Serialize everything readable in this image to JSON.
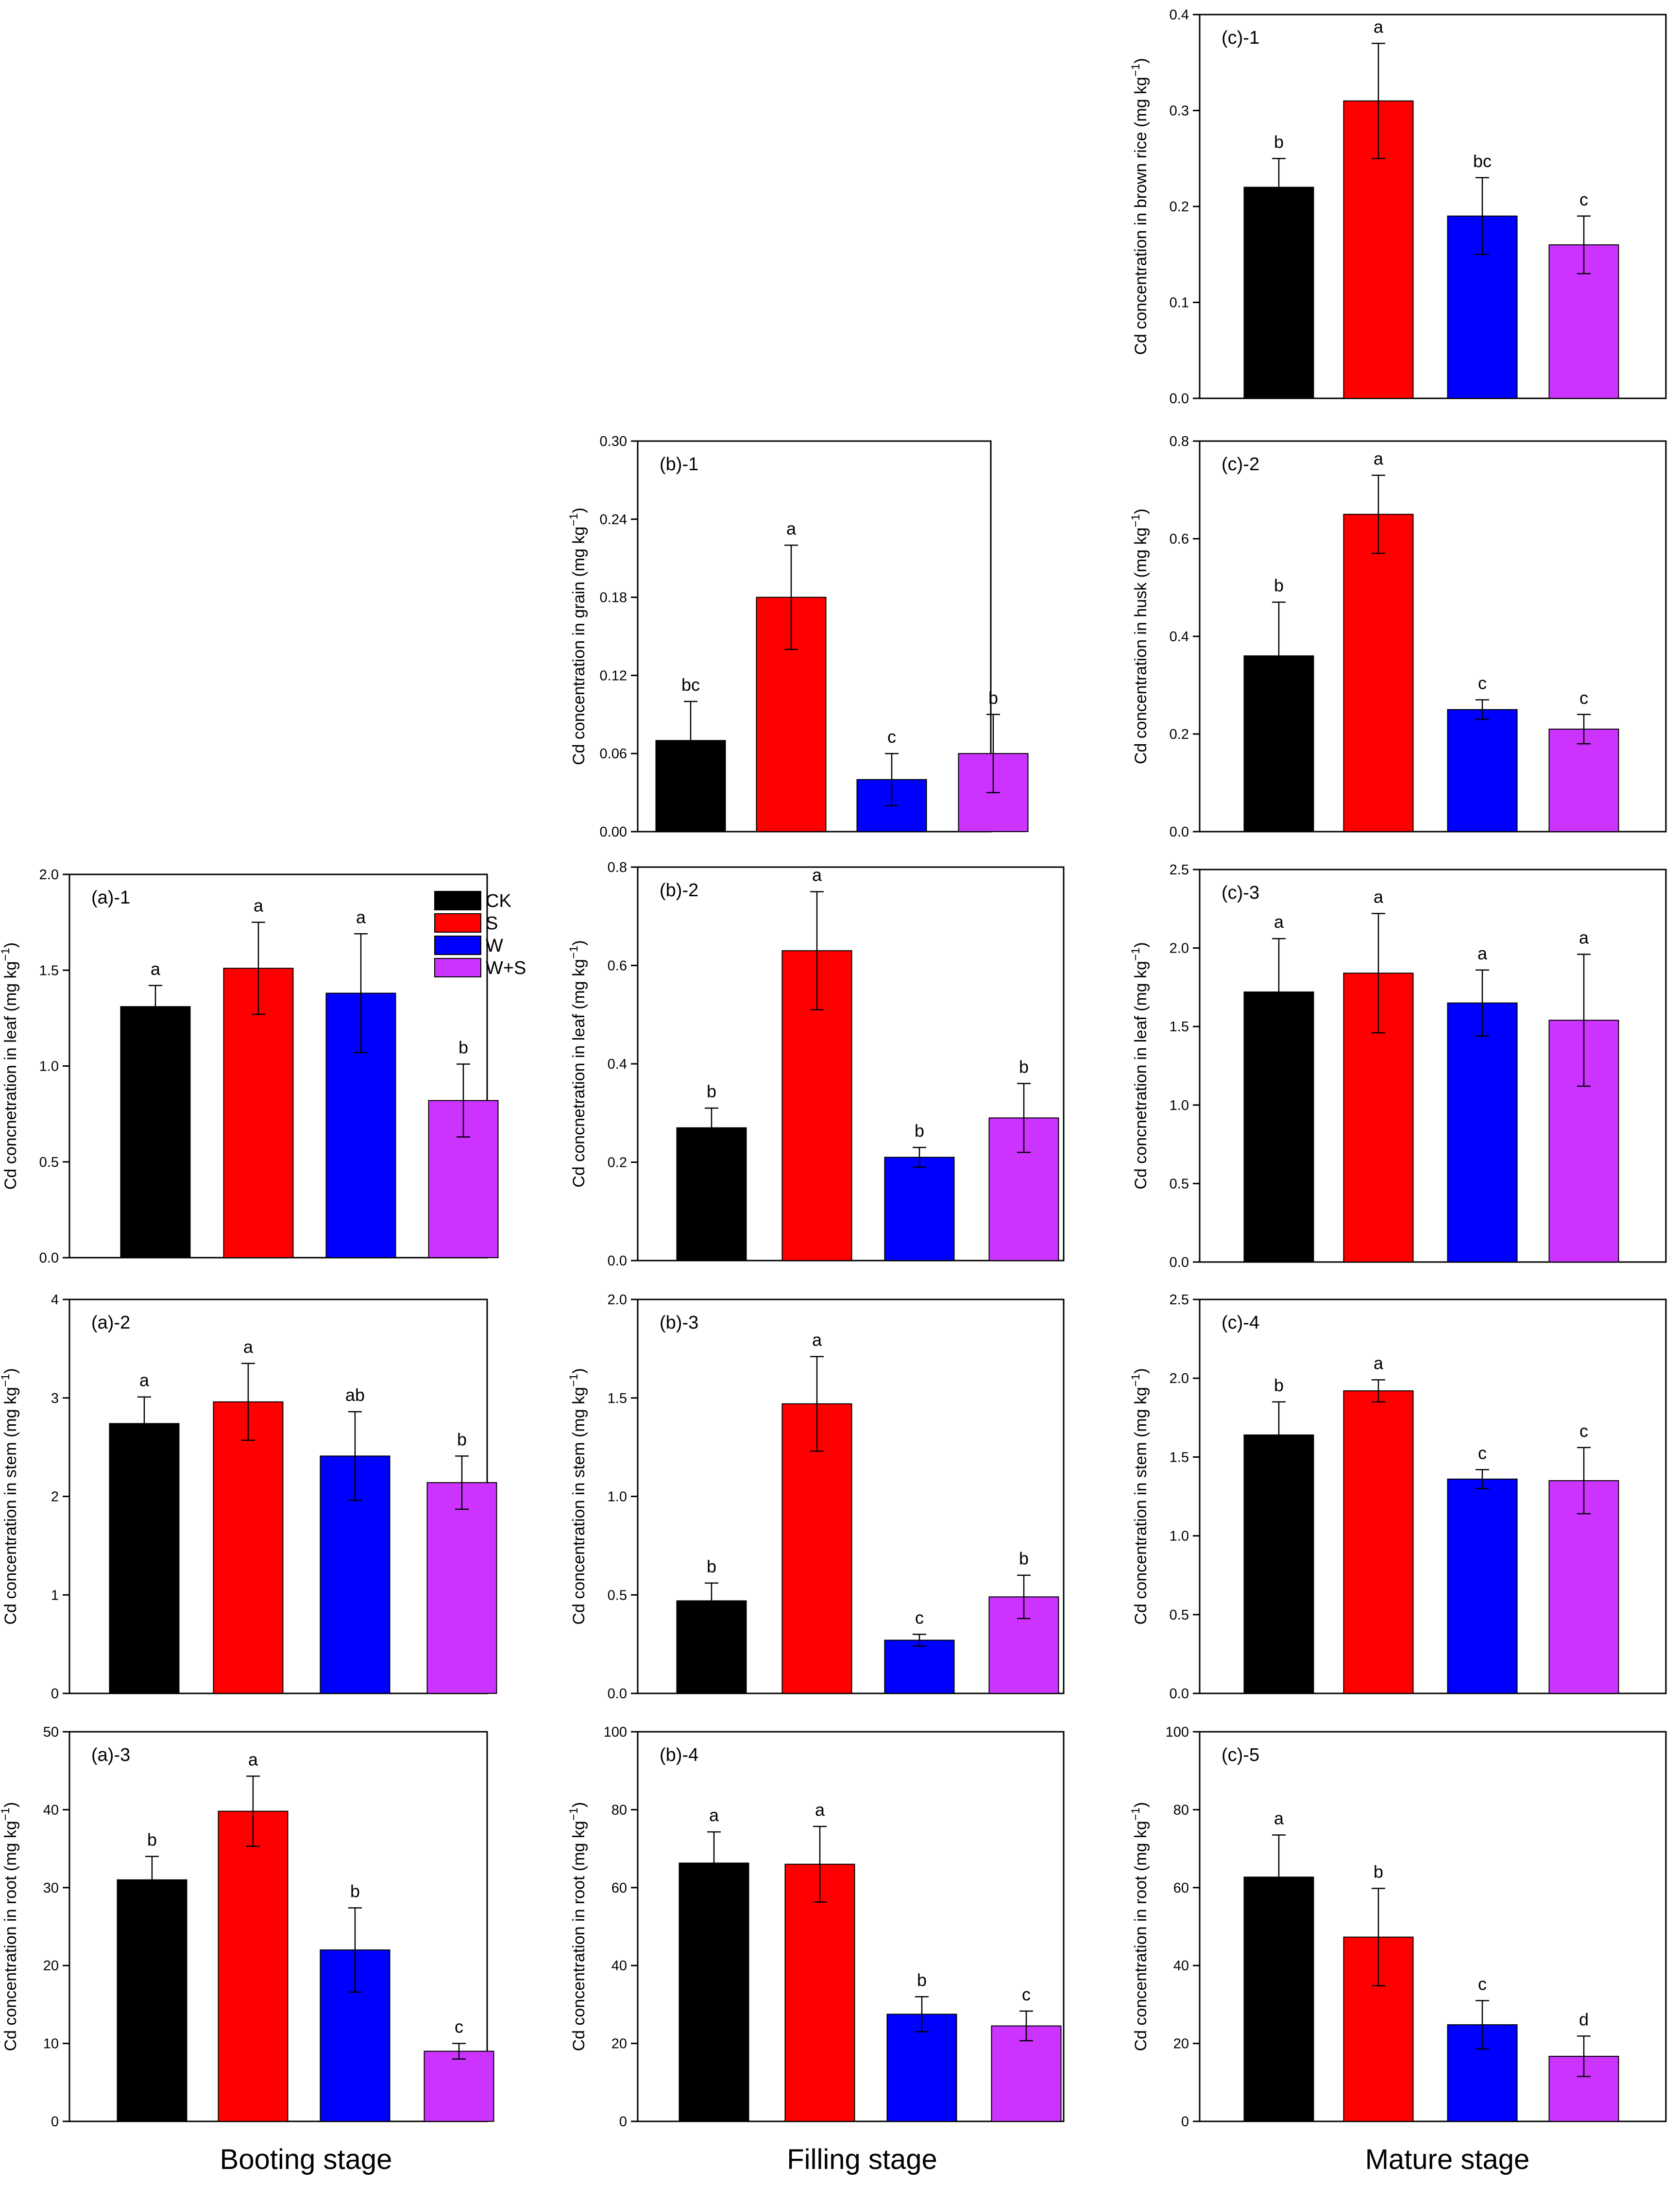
{
  "colors": {
    "CK": "#000000",
    "S": "#ff0000",
    "W": "#0000ff",
    "W+S": "#cc33ff"
  },
  "legend": {
    "items": [
      "CK",
      "S",
      "W",
      "W+S"
    ]
  },
  "stages": [
    "Booting stage",
    "Filling stage",
    "Mature stage"
  ],
  "chart_data": [
    {
      "id": "c1",
      "type": "bar",
      "title": "(c)-1",
      "ylabel": "Cd concentration in brown rice (mg kg",
      "ylabel_sup": "−1",
      "ylabel_end": ")",
      "categories": [
        "CK",
        "S",
        "W",
        "W+S"
      ],
      "values": [
        0.22,
        0.31,
        0.19,
        0.16
      ],
      "errors": [
        0.03,
        0.06,
        0.04,
        0.03
      ],
      "letters": [
        "b",
        "a",
        "bc",
        "c"
      ],
      "ylim": [
        0,
        0.4
      ],
      "yticks": [
        "0.0",
        "0.1",
        "0.2",
        "0.3",
        "0.4"
      ]
    },
    {
      "id": "b1",
      "type": "bar",
      "title": "(b)-1",
      "ylabel": "Cd concentration in grain (mg kg",
      "ylabel_sup": "−1",
      "ylabel_end": ")",
      "categories": [
        "CK",
        "S",
        "W",
        "W+S"
      ],
      "values": [
        0.07,
        0.18,
        0.04,
        0.06
      ],
      "errors": [
        0.03,
        0.04,
        0.02,
        0.03
      ],
      "letters": [
        "bc",
        "a",
        "c",
        "b"
      ],
      "ylim": [
        0,
        0.3
      ],
      "yticks": [
        "0.00",
        "0.06",
        "0.12",
        "0.18",
        "0.24",
        "0.30"
      ]
    },
    {
      "id": "c2",
      "type": "bar",
      "title": "(c)-2",
      "ylabel": "Cd concentration in husk (mg kg",
      "ylabel_sup": "−1",
      "ylabel_end": ")",
      "categories": [
        "CK",
        "S",
        "W",
        "W+S"
      ],
      "values": [
        0.36,
        0.65,
        0.25,
        0.21
      ],
      "errors": [
        0.11,
        0.08,
        0.02,
        0.03
      ],
      "letters": [
        "b",
        "a",
        "c",
        "c"
      ],
      "ylim": [
        0,
        0.8
      ],
      "yticks": [
        "0.0",
        "0.2",
        "0.4",
        "0.6",
        "0.8"
      ]
    },
    {
      "id": "a1",
      "type": "bar",
      "title": "(a)-1",
      "ylabel": "Cd concnetration in leaf (mg kg",
      "ylabel_sup": "−1",
      "ylabel_end": ")",
      "categories": [
        "CK",
        "S",
        "W",
        "W+S"
      ],
      "values": [
        1.31,
        1.51,
        1.38,
        0.82
      ],
      "errors": [
        0.11,
        0.24,
        0.31,
        0.19
      ],
      "letters": [
        "a",
        "a",
        "a",
        "b"
      ],
      "ylim": [
        0,
        2.0
      ],
      "yticks": [
        "0.0",
        "0.5",
        "1.0",
        "1.5",
        "2.0"
      ],
      "legend": true
    },
    {
      "id": "b2",
      "type": "bar",
      "title": "(b)-2",
      "ylabel": "Cd concnetration in leaf (mg kg",
      "ylabel_sup": "−1",
      "ylabel_end": ")",
      "categories": [
        "CK",
        "S",
        "W",
        "W+S"
      ],
      "values": [
        0.27,
        0.63,
        0.21,
        0.29
      ],
      "errors": [
        0.04,
        0.12,
        0.02,
        0.07
      ],
      "letters": [
        "b",
        "a",
        "b",
        "b"
      ],
      "ylim": [
        0,
        0.8
      ],
      "yticks": [
        "0.0",
        "0.2",
        "0.4",
        "0.6",
        "0.8"
      ]
    },
    {
      "id": "c3",
      "type": "bar",
      "title": "(c)-3",
      "ylabel": "Cd concnetration in leaf (mg kg",
      "ylabel_sup": "−1",
      "ylabel_end": ")",
      "categories": [
        "CK",
        "S",
        "W",
        "W+S"
      ],
      "values": [
        1.72,
        1.84,
        1.65,
        1.54
      ],
      "errors": [
        0.34,
        0.38,
        0.21,
        0.42
      ],
      "letters": [
        "a",
        "a",
        "a",
        "a"
      ],
      "ylim": [
        0,
        2.5
      ],
      "yticks": [
        "0.0",
        "0.5",
        "1.0",
        "1.5",
        "2.0",
        "2.5"
      ]
    },
    {
      "id": "a2",
      "type": "bar",
      "title": "(a)-2",
      "ylabel": "Cd concentration in stem (mg kg",
      "ylabel_sup": "−1",
      "ylabel_end": ")",
      "categories": [
        "CK",
        "S",
        "W",
        "W+S"
      ],
      "values": [
        2.74,
        2.96,
        2.41,
        2.14
      ],
      "errors": [
        0.27,
        0.39,
        0.45,
        0.27
      ],
      "letters": [
        "a",
        "a",
        "ab",
        "b"
      ],
      "ylim": [
        0,
        4
      ],
      "yticks": [
        "0",
        "1",
        "2",
        "3",
        "4"
      ]
    },
    {
      "id": "b3",
      "type": "bar",
      "title": "(b)-3",
      "ylabel": "Cd concentration in stem (mg kg",
      "ylabel_sup": "−1",
      "ylabel_end": ")",
      "categories": [
        "CK",
        "S",
        "W",
        "W+S"
      ],
      "values": [
        0.47,
        1.47,
        0.27,
        0.49
      ],
      "errors": [
        0.09,
        0.24,
        0.03,
        0.11
      ],
      "letters": [
        "b",
        "a",
        "c",
        "b"
      ],
      "ylim": [
        0,
        2.0
      ],
      "yticks": [
        "0.0",
        "0.5",
        "1.0",
        "1.5",
        "2.0"
      ]
    },
    {
      "id": "c4",
      "type": "bar",
      "title": "(c)-4",
      "ylabel": "Cd concentration in stem (mg kg",
      "ylabel_sup": "−1",
      "ylabel_end": ")",
      "categories": [
        "CK",
        "S",
        "W",
        "W+S"
      ],
      "values": [
        1.64,
        1.92,
        1.36,
        1.35
      ],
      "errors": [
        0.21,
        0.07,
        0.06,
        0.21
      ],
      "letters": [
        "b",
        "a",
        "c",
        "c"
      ],
      "ylim": [
        0,
        2.5
      ],
      "yticks": [
        "0.0",
        "0.5",
        "1.0",
        "1.5",
        "2.0",
        "2.5"
      ]
    },
    {
      "id": "a3",
      "type": "bar",
      "title": "(a)-3",
      "ylabel": "Cd concentration in root (mg kg",
      "ylabel_sup": "−1",
      "ylabel_end": ")",
      "categories": [
        "CK",
        "S",
        "W",
        "W+S"
      ],
      "values": [
        31,
        39.8,
        22,
        9
      ],
      "errors": [
        3,
        4.5,
        5.4,
        1
      ],
      "letters": [
        "b",
        "a",
        "b",
        "c"
      ],
      "ylim": [
        0,
        50
      ],
      "yticks": [
        "0",
        "10",
        "20",
        "30",
        "40",
        "50"
      ]
    },
    {
      "id": "b4",
      "type": "bar",
      "title": "(b)-4",
      "ylabel": "Cd concentration in root (mg kg",
      "ylabel_sup": "−1",
      "ylabel_end": ")",
      "categories": [
        "CK",
        "S",
        "W",
        "W+S"
      ],
      "values": [
        66.3,
        66,
        27.5,
        24.5
      ],
      "errors": [
        8,
        9.7,
        4.5,
        3.8
      ],
      "letters": [
        "a",
        "a",
        "b",
        "c"
      ],
      "ylim": [
        0,
        100
      ],
      "yticks": [
        "0",
        "20",
        "40",
        "60",
        "80",
        "100"
      ]
    },
    {
      "id": "c5",
      "type": "bar",
      "title": "(c)-5",
      "ylabel": "Cd concentration in root (mg kg",
      "ylabel_sup": "−1",
      "ylabel_end": ")",
      "categories": [
        "CK",
        "S",
        "W",
        "W+S"
      ],
      "values": [
        62.7,
        47.3,
        24.8,
        16.7
      ],
      "errors": [
        10.8,
        12.5,
        6.2,
        5.2
      ],
      "letters": [
        "a",
        "b",
        "c",
        "d"
      ],
      "ylim": [
        0,
        100
      ],
      "yticks": [
        "0",
        "20",
        "40",
        "60",
        "80",
        "100"
      ]
    }
  ]
}
